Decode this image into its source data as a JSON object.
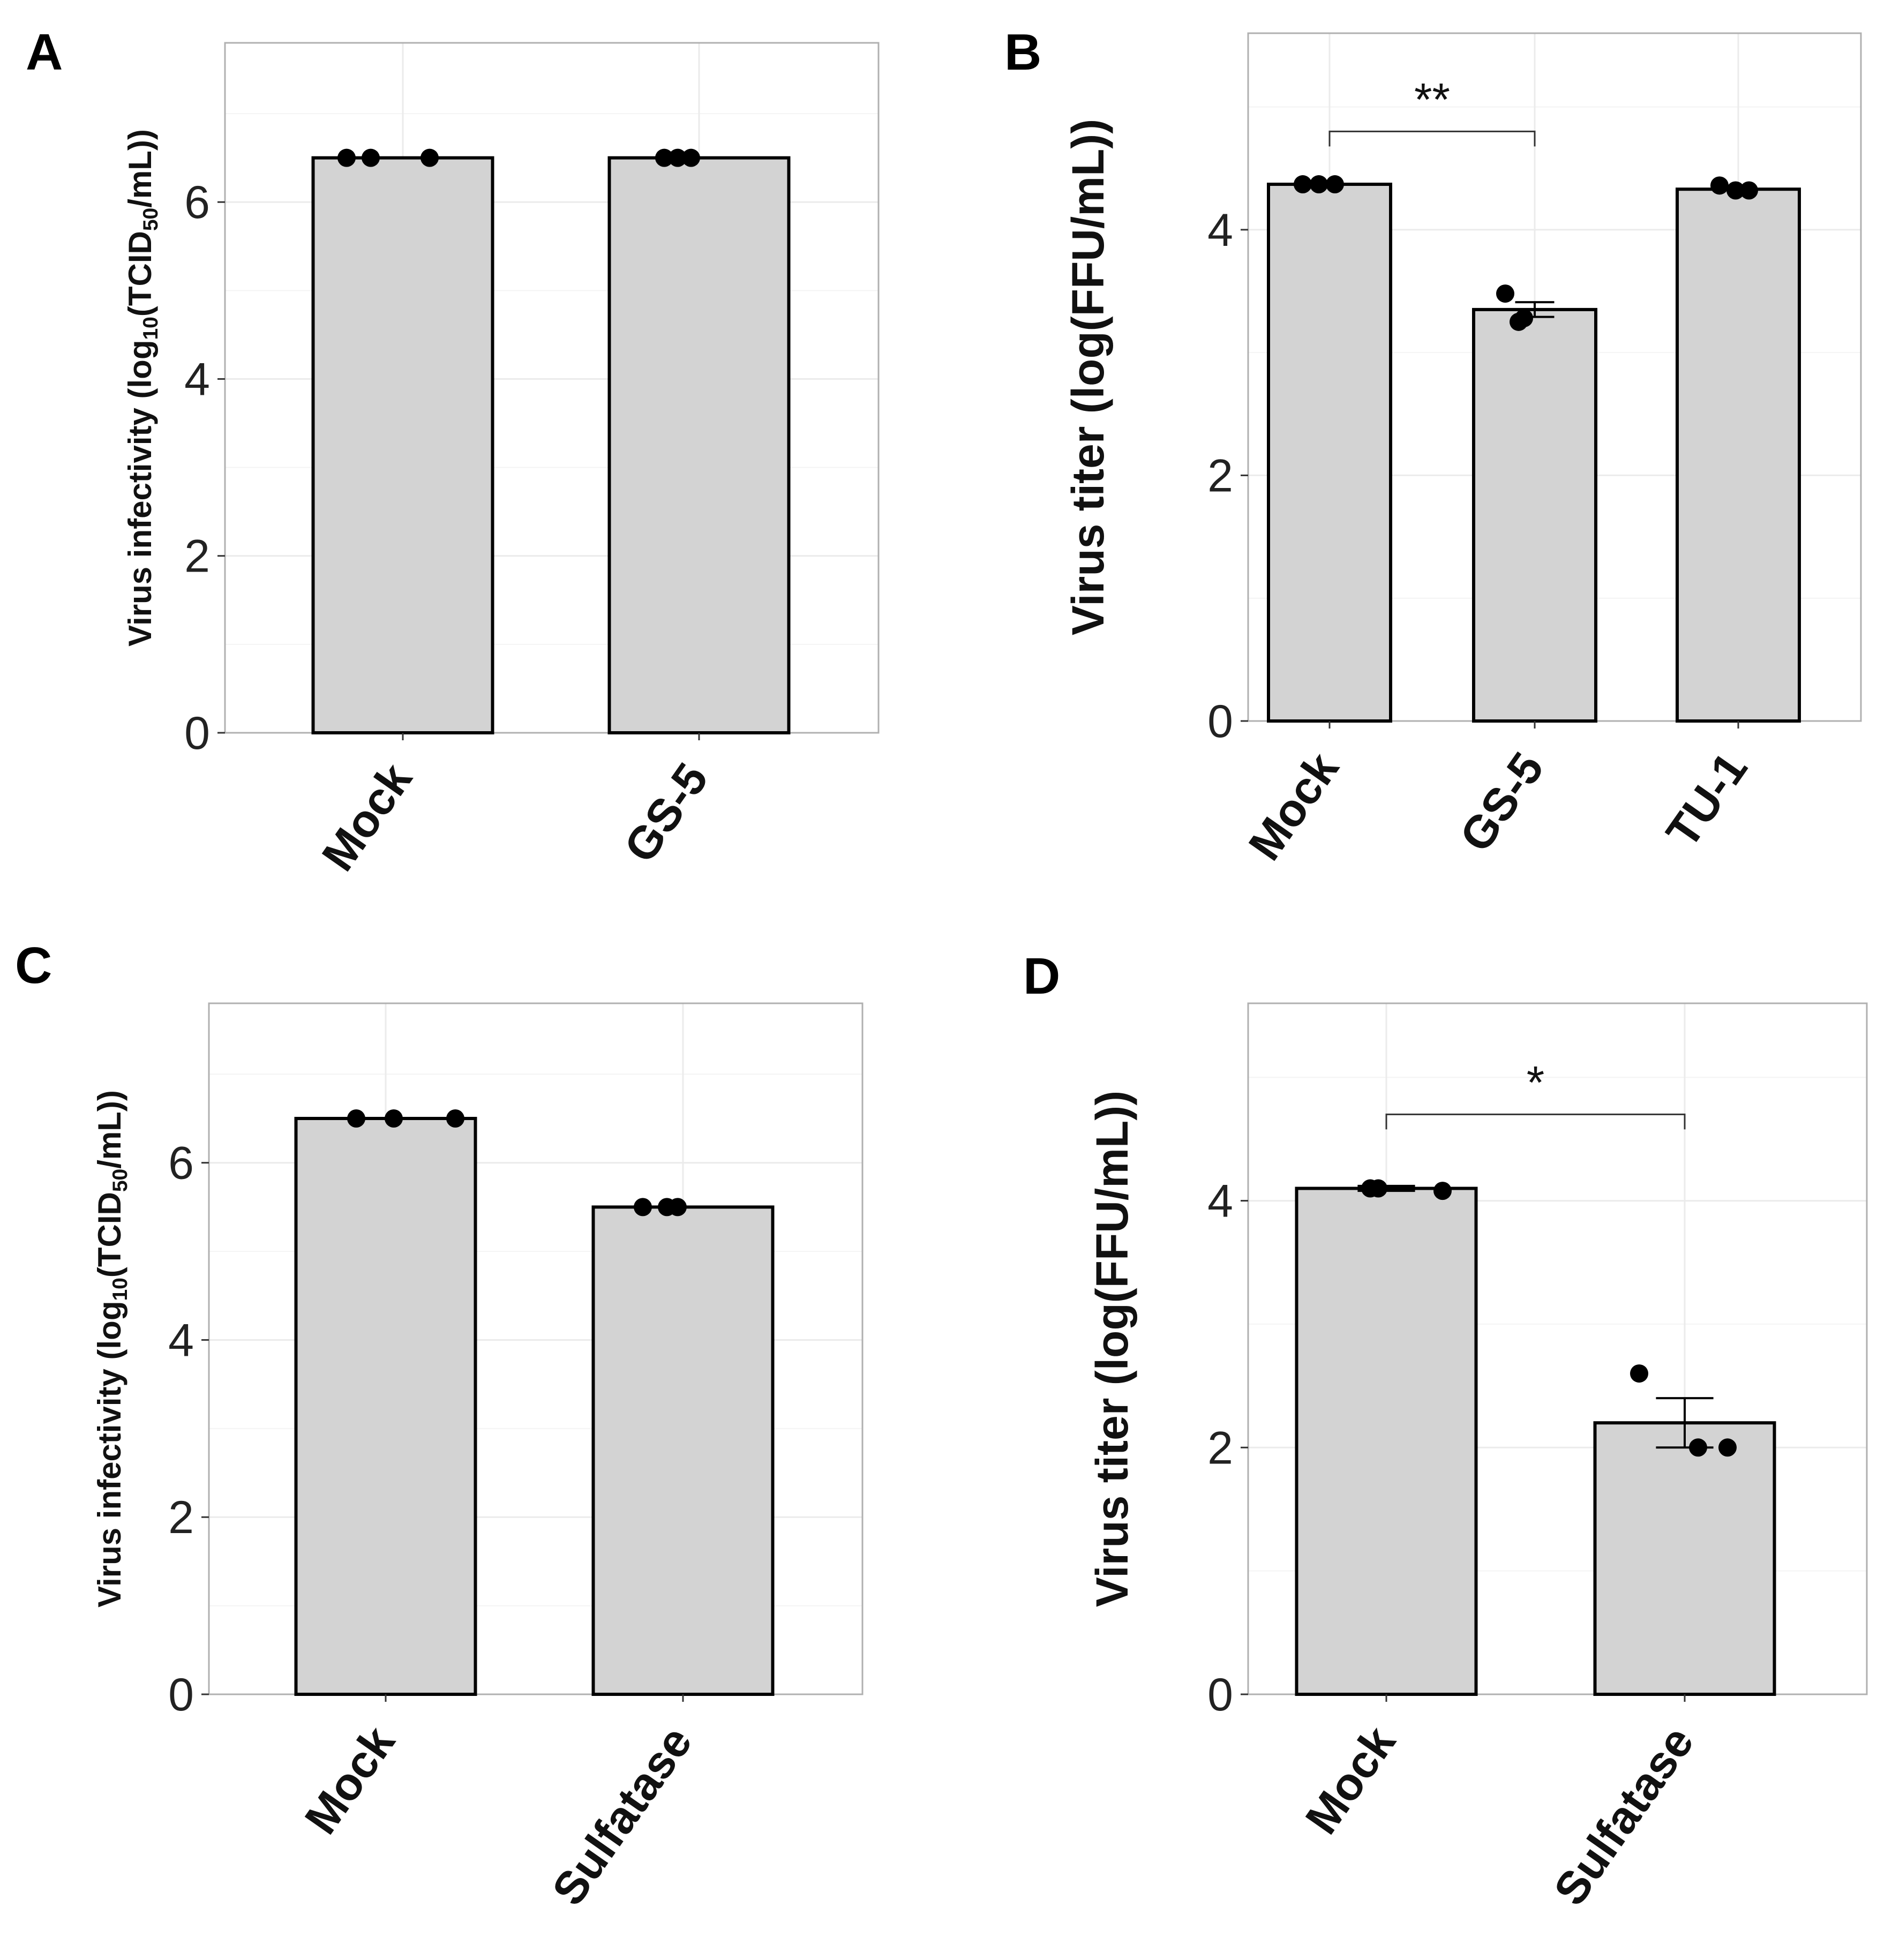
{
  "chart_data": [
    {
      "panel": "A",
      "type": "bar",
      "ylabel": "Virus infectivity",
      "ylabel_unit": {
        "pre": "(log",
        "sub1": "10",
        "mid": "(TCID",
        "sub2": "50",
        "post": "/mL))"
      },
      "ylim": [
        0,
        7.8
      ],
      "yticks": [
        0,
        2,
        4,
        6
      ],
      "categories": [
        "Mock",
        "GS-5"
      ],
      "values": [
        6.5,
        6.5
      ],
      "errors": [
        0,
        0
      ],
      "points": [
        [
          6.5,
          6.5,
          6.5
        ],
        [
          6.5,
          6.5,
          6.5
        ]
      ],
      "significance": null
    },
    {
      "panel": "B",
      "type": "bar",
      "ylabel": "Virus titer",
      "ylabel_unit": {
        "pre": "(log(FFU/mL))"
      },
      "ylim": [
        0,
        5.6
      ],
      "yticks": [
        0,
        2,
        4
      ],
      "categories": [
        "Mock",
        "GS-5",
        "TU-1"
      ],
      "values": [
        4.37,
        3.35,
        4.33
      ],
      "errors": [
        0,
        0.06,
        0
      ],
      "points": [
        [
          4.37,
          4.37,
          4.37
        ],
        [
          3.48,
          3.25,
          3.28
        ],
        [
          4.36,
          4.32,
          4.32
        ]
      ],
      "significance": {
        "from": 0,
        "to": 1,
        "label": "**",
        "y": 4.8
      }
    },
    {
      "panel": "C",
      "type": "bar",
      "ylabel": "Virus infectivity",
      "ylabel_unit": {
        "pre": "(log",
        "sub1": "10",
        "mid": "(TCID",
        "sub2": "50",
        "post": "/mL))"
      },
      "ylim": [
        0,
        7.8
      ],
      "yticks": [
        0,
        2,
        4,
        6
      ],
      "categories": [
        "Mock",
        "Sulfatase"
      ],
      "values": [
        6.5,
        5.5
      ],
      "errors": [
        0,
        0
      ],
      "points": [
        [
          6.5,
          6.5,
          6.5
        ],
        [
          5.5,
          5.5,
          5.5
        ]
      ],
      "significance": null
    },
    {
      "panel": "D",
      "type": "bar",
      "ylabel": "Virus titer",
      "ylabel_unit": {
        "pre": "(log(FFU/mL))"
      },
      "ylim": [
        0,
        5.6
      ],
      "yticks": [
        0,
        2,
        4
      ],
      "categories": [
        "Mock",
        "Sulfatase"
      ],
      "values": [
        4.1,
        2.2
      ],
      "errors": [
        0.02,
        0.2
      ],
      "points": [
        [
          4.1,
          4.1,
          4.08
        ],
        [
          2.6,
          2.0,
          2.0
        ]
      ],
      "significance": {
        "from": 0,
        "to": 1,
        "label": "*",
        "y": 4.7
      }
    }
  ]
}
